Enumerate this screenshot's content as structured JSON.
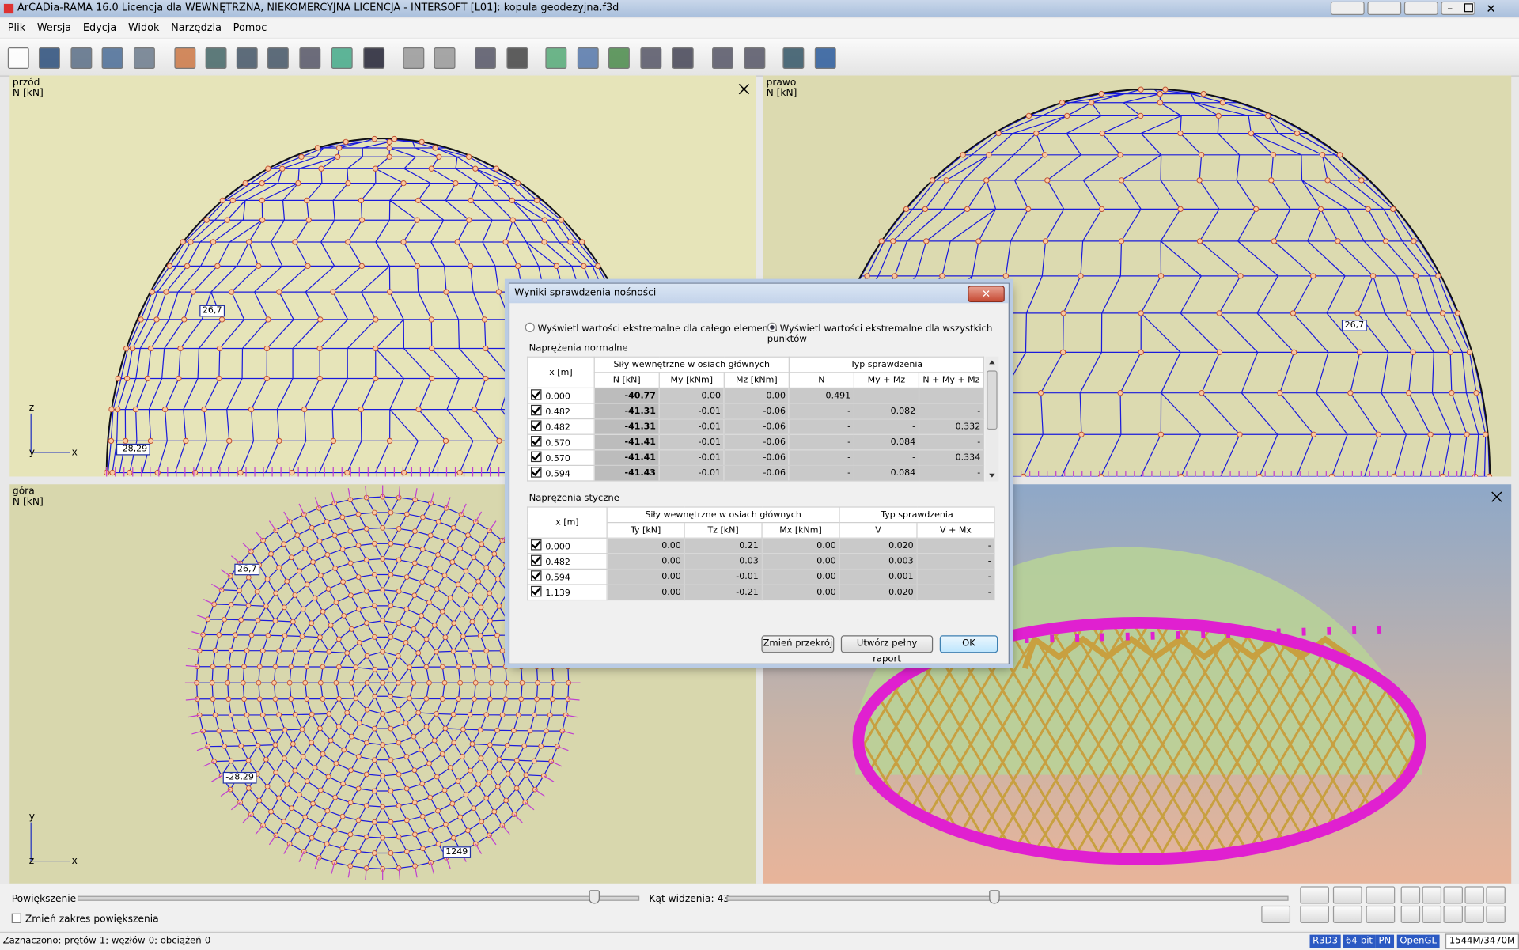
{
  "window": {
    "title": "ArCADia-RAMA 16.0 Licencja dla WEWNĘTRZNA, NIEKOMERCYJNA LICENCJA - INTERSOFT [L01]: kopula geodezyjna.f3d"
  },
  "menu": [
    "Plik",
    "Wersja",
    "Edycja",
    "Widok",
    "Narzędzia",
    "Pomoc"
  ],
  "viewports": [
    {
      "name": "przód",
      "unit": "N [kN]",
      "labels": [
        "26,7",
        "-28,29"
      ],
      "axes": [
        "z",
        "y",
        "x"
      ]
    },
    {
      "name": "prawo",
      "unit": "N [kN]",
      "labels": [
        "26,7"
      ]
    },
    {
      "name": "góra",
      "unit": "N [kN]",
      "labels": [
        "26,7",
        "-28,29",
        "1249"
      ],
      "axes": [
        "y",
        "z",
        "x"
      ]
    }
  ],
  "dialog": {
    "title": "Wyniki sprawdzenia nośności",
    "options": [
      "Wyświetl wartości ekstremalne dla całego elementu",
      "Wyświetl wartości ekstremalne dla wszystkich punktów"
    ],
    "normal": {
      "title": "Naprężenia normalne",
      "group_forces": "Siły wewnętrzne w osiach głównych",
      "group_check": "Typ sprawdzenia",
      "columns": [
        "x [m]",
        "N [kN]",
        "My [kNm]",
        "Mz [kNm]",
        "N",
        "My + Mz",
        "N + My + Mz"
      ],
      "rows": [
        [
          "0.000",
          "-40.77",
          "0.00",
          "0.00",
          "0.491",
          "-",
          "-"
        ],
        [
          "0.482",
          "-41.31",
          "-0.01",
          "-0.06",
          "-",
          "0.082",
          "-"
        ],
        [
          "0.482",
          "-41.31",
          "-0.01",
          "-0.06",
          "-",
          "-",
          "0.332"
        ],
        [
          "0.570",
          "-41.41",
          "-0.01",
          "-0.06",
          "-",
          "0.084",
          "-"
        ],
        [
          "0.570",
          "-41.41",
          "-0.01",
          "-0.06",
          "-",
          "-",
          "0.334"
        ],
        [
          "0.594",
          "-41.43",
          "-0.01",
          "-0.06",
          "-",
          "0.084",
          "-"
        ]
      ]
    },
    "shear": {
      "title": "Naprężenia styczne",
      "group_forces": "Siły wewnętrzne w osiach głównych",
      "group_check": "Typ sprawdzenia",
      "columns": [
        "x [m]",
        "Ty [kN]",
        "Tz [kN]",
        "Mx [kNm]",
        "V",
        "V + Mx"
      ],
      "rows": [
        [
          "0.000",
          "0.00",
          "0.21",
          "0.00",
          "0.020",
          "-"
        ],
        [
          "0.482",
          "0.00",
          "0.03",
          "0.00",
          "0.003",
          "-"
        ],
        [
          "0.594",
          "0.00",
          "-0.01",
          "0.00",
          "0.001",
          "-"
        ],
        [
          "1.139",
          "0.00",
          "-0.21",
          "0.00",
          "0.020",
          "-"
        ]
      ]
    },
    "buttons": [
      "Zmień przekrój",
      "Utwórz pełny raport",
      "OK"
    ]
  },
  "controls": {
    "zoom": "Powiększenie",
    "angle": "Kąt widzenia: 43",
    "zoom_range": "Zmień zakres powiększenia"
  },
  "status": {
    "text": "Zaznaczono: prętów-1; węzłów-0; obciążeń-0",
    "badges": [
      "R3D3",
      "64-bit",
      "PN",
      "OpenGL",
      "1544M/3470M"
    ]
  }
}
